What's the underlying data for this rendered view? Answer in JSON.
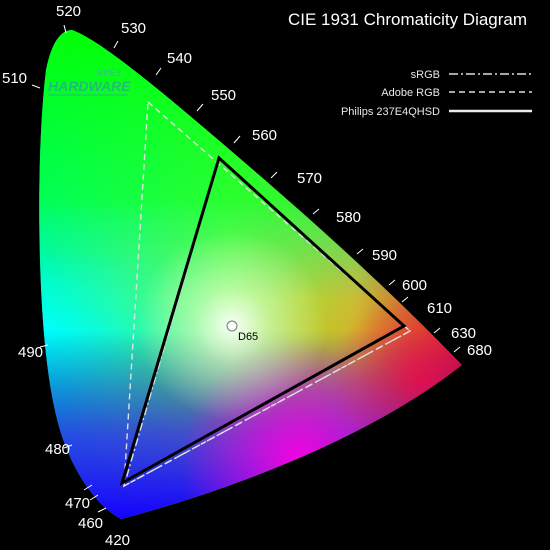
{
  "title": "CIE 1931 Chromaticity Diagram",
  "logo": {
    "line1": "SVĚT",
    "line2": "HARDWARE"
  },
  "white_point": {
    "label": "D65"
  },
  "legend": [
    {
      "label": "sRGB",
      "style": "dash-dot"
    },
    {
      "label": "Adobe RGB",
      "style": "dashed"
    },
    {
      "label": "Philips 237E4QHSD",
      "style": "solid"
    }
  ],
  "wavelength_labels": [
    "420",
    "460",
    "470",
    "480",
    "490",
    "510",
    "520",
    "530",
    "540",
    "550",
    "560",
    "570",
    "580",
    "590",
    "600",
    "610",
    "630",
    "680"
  ],
  "colors": {
    "background": "#000000",
    "monitor_gamut": "#000000",
    "reference_gamut": "#e0e0e0",
    "text": "#ffffff"
  }
}
